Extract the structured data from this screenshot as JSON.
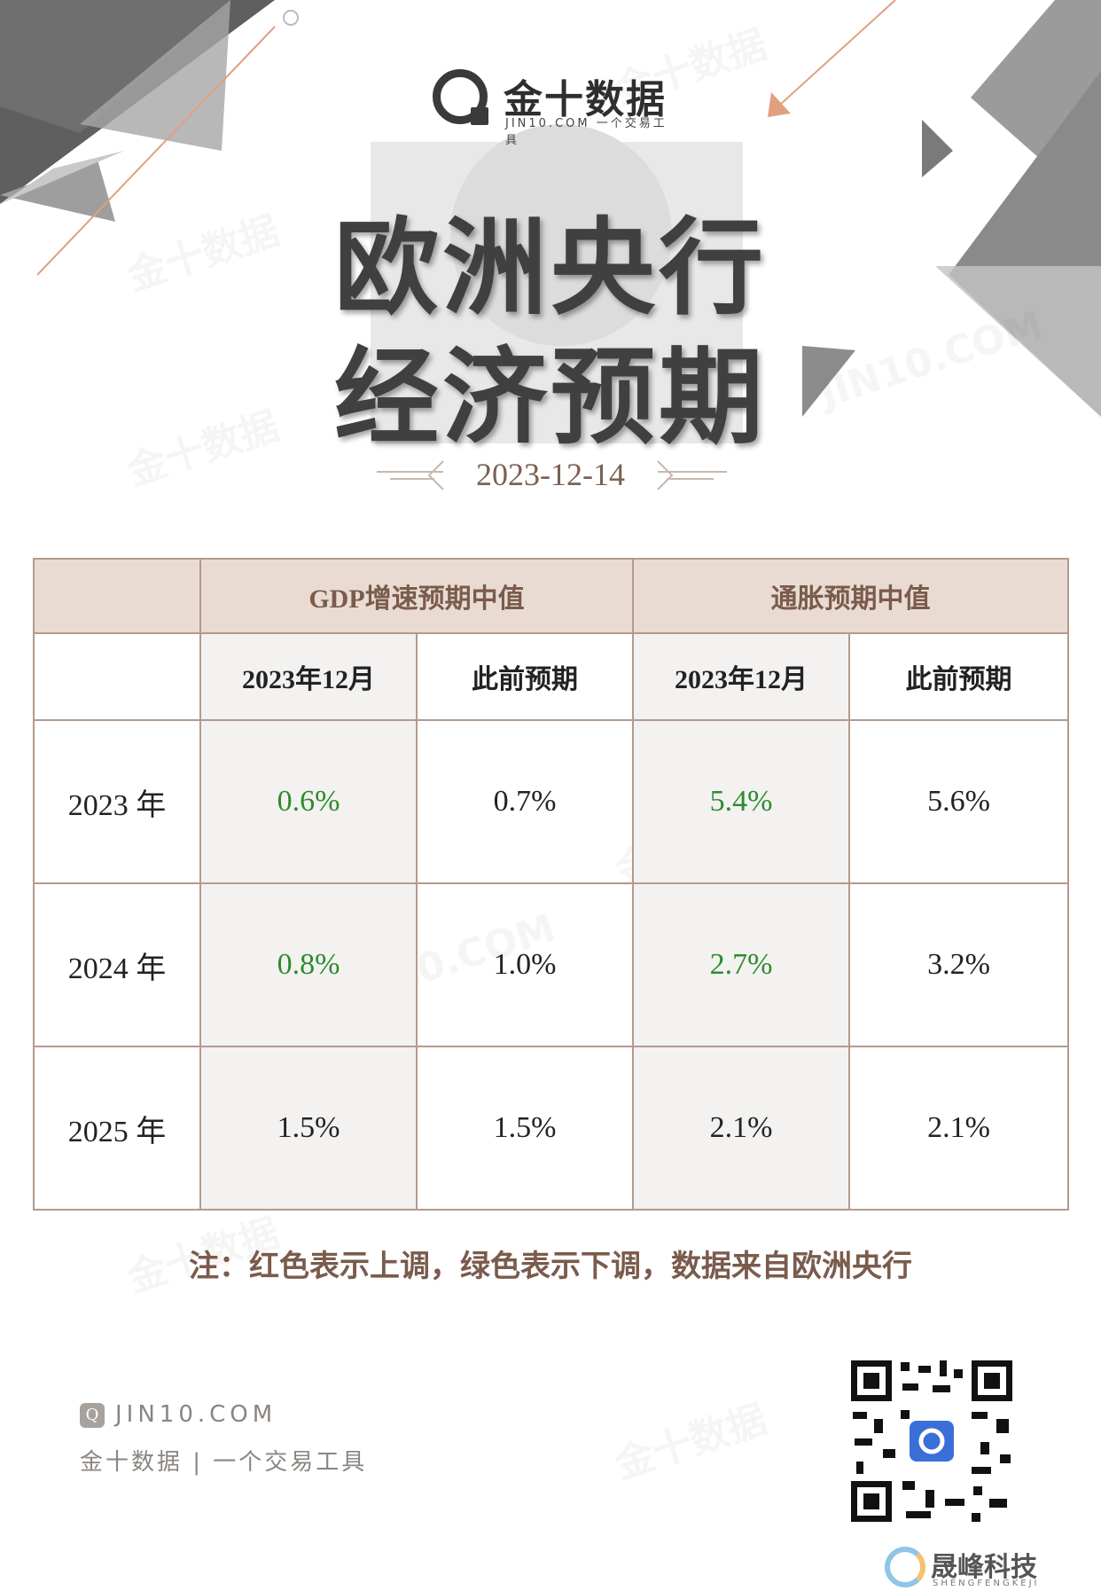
{
  "header": {
    "logo_name": "金十数据",
    "logo_sub": "JIN10.COM 一个交易工具",
    "title_line1": "欧洲央行",
    "title_line2": "经济预期",
    "date": "2023-12-14"
  },
  "table": {
    "group_headers": [
      "GDP增速预期中值",
      "通胀预期中值"
    ],
    "sub_headers": [
      "2023年12月",
      "此前预期",
      "2023年12月",
      "此前预期"
    ],
    "rows": [
      {
        "year": "2023 年",
        "gdp_current": "0.6%",
        "gdp_previous": "0.7%",
        "cpi_current": "5.4%",
        "cpi_previous": "5.6%"
      },
      {
        "year": "2024 年",
        "gdp_current": "0.8%",
        "gdp_previous": "1.0%",
        "cpi_current": "2.7%",
        "cpi_previous": "3.2%"
      },
      {
        "year": "2025 年",
        "gdp_current": "1.5%",
        "gdp_previous": "1.5%",
        "cpi_current": "2.1%",
        "cpi_previous": "2.1%"
      }
    ]
  },
  "note": "注：红色表示上调，绿色表示下调，数据来自欧洲央行",
  "footer": {
    "brand": "JIN10.COM",
    "tagline": "金十数据 | 一个交易工具",
    "credit_name": "晟峰科技",
    "credit_sub": "SHENGFENGKEJI"
  },
  "watermark": {
    "cn": "金十数据",
    "en": "JIN10.COM"
  },
  "colors": {
    "header_bg": "#eadbd2",
    "border": "#b49a8c",
    "down_green": "#2e8b2e",
    "accent_brown": "#7a5b4c"
  }
}
